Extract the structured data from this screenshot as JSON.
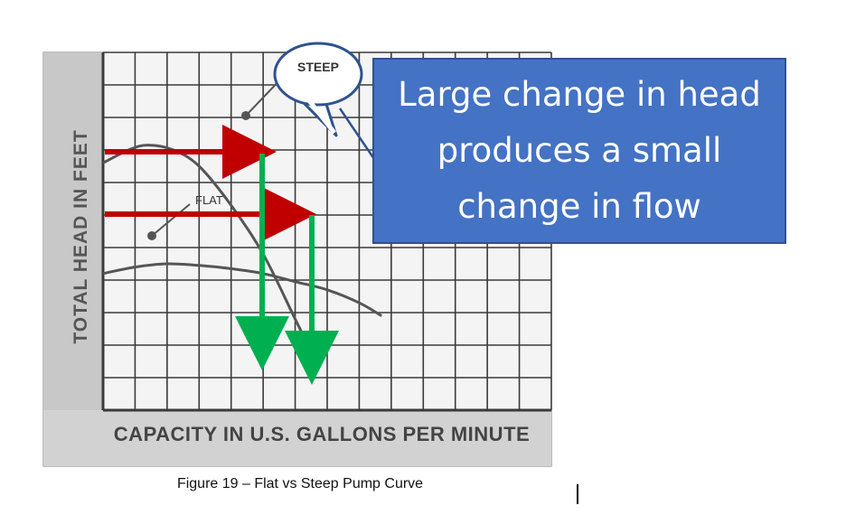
{
  "caption": "Figure 19 – Flat vs Steep Pump Curve",
  "callout": {
    "text": "Large change in head\nproduces a small\nchange in flow"
  },
  "colors": {
    "callout_fill": "#4472C4",
    "head_arrow": "#C00000",
    "flow_arrow": "#00B050",
    "curve": "#555555"
  },
  "chart_data": {
    "type": "line",
    "xlabel": "CAPACITY IN U.S. GALLONS PER MINUTE",
    "ylabel": "TOTAL HEAD IN FEET",
    "grid": true,
    "series": [
      {
        "name": "STEEP",
        "points": [
          [
            0.0,
            7.6
          ],
          [
            0.8,
            8.0
          ],
          [
            1.4,
            8.15
          ],
          [
            2.2,
            8.0
          ],
          [
            3.0,
            7.5
          ],
          [
            4.0,
            6.3
          ],
          [
            5.0,
            4.8
          ],
          [
            6.0,
            2.8
          ],
          [
            6.6,
            1.6
          ]
        ]
      },
      {
        "name": "FLAT",
        "points": [
          [
            0.0,
            4.2
          ],
          [
            1.0,
            4.4
          ],
          [
            2.0,
            4.5
          ],
          [
            3.0,
            4.45
          ],
          [
            4.0,
            4.35
          ],
          [
            5.0,
            4.2
          ],
          [
            6.0,
            3.95
          ],
          [
            7.0,
            3.7
          ],
          [
            8.0,
            3.3
          ],
          [
            8.7,
            2.9
          ]
        ]
      }
    ]
  }
}
